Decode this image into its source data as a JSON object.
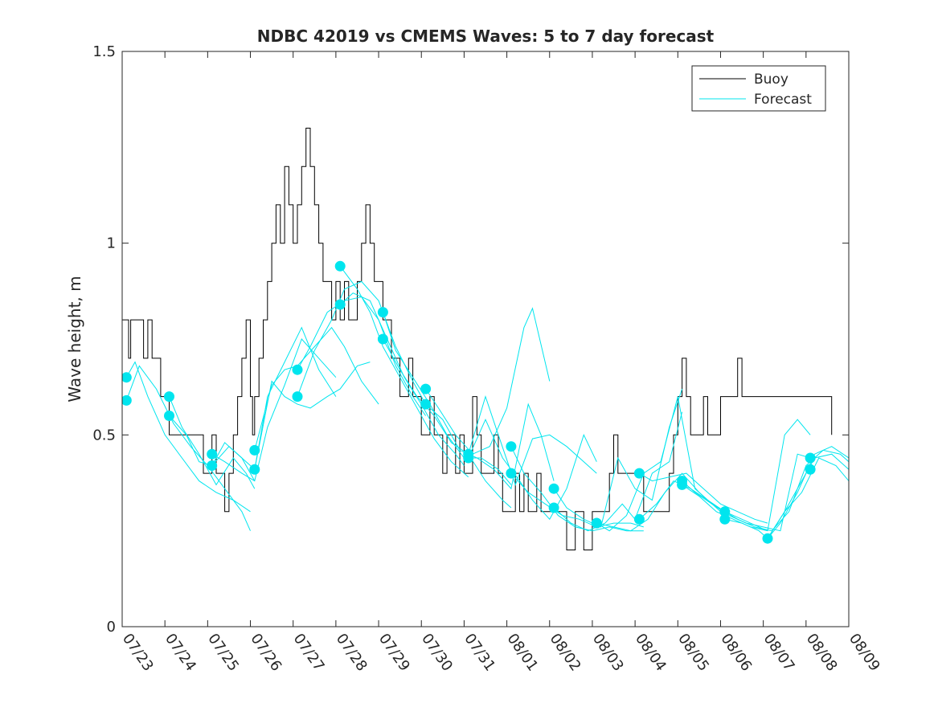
{
  "chart_data": {
    "type": "line",
    "title": "NDBC 42019 vs CMEMS Waves: 5 to 7 day forecast",
    "xlabel": "",
    "ylabel": "Wave height, m",
    "ylim": [
      0,
      1.5
    ],
    "xlim": [
      "07/23",
      "08/09"
    ],
    "yticks": [
      0,
      0.5,
      1,
      1.5
    ],
    "ytick_labels": [
      "0",
      "0.5",
      "1",
      "1.5"
    ],
    "xtick_labels": [
      "07/23",
      "07/24",
      "07/25",
      "07/26",
      "07/27",
      "07/28",
      "07/29",
      "07/30",
      "07/31",
      "08/01",
      "08/02",
      "08/03",
      "08/04",
      "08/05",
      "08/06",
      "08/07",
      "08/08",
      "08/09"
    ],
    "grid": false,
    "legend": {
      "position": "top-right",
      "entries": [
        "Buoy",
        "Forecast"
      ]
    },
    "colors": {
      "buoy": "#000000",
      "forecast": "#00e5ee",
      "marker": "#00e5ee"
    },
    "buoy": {
      "name": "Buoy",
      "x": [
        0,
        0.1,
        0.15,
        0.2,
        0.3,
        0.4,
        0.5,
        0.6,
        0.7,
        0.75,
        0.8,
        0.9,
        1.0,
        1.1,
        1.3,
        1.5,
        1.7,
        1.9,
        2.0,
        2.1,
        2.2,
        2.3,
        2.4,
        2.5,
        2.6,
        2.7,
        2.8,
        2.9,
        3.0,
        3.05,
        3.1,
        3.2,
        3.3,
        3.4,
        3.5,
        3.6,
        3.7,
        3.8,
        3.9,
        4.0,
        4.1,
        4.2,
        4.3,
        4.4,
        4.5,
        4.6,
        4.7,
        4.8,
        4.9,
        5.0,
        5.1,
        5.2,
        5.3,
        5.4,
        5.5,
        5.6,
        5.7,
        5.8,
        5.9,
        6.0,
        6.1,
        6.2,
        6.3,
        6.4,
        6.5,
        6.6,
        6.7,
        6.8,
        6.9,
        7.0,
        7.1,
        7.2,
        7.3,
        7.4,
        7.5,
        7.6,
        7.7,
        7.8,
        7.9,
        8.0,
        8.1,
        8.2,
        8.3,
        8.4,
        8.5,
        8.6,
        8.7,
        8.8,
        8.9,
        9.0,
        9.1,
        9.2,
        9.3,
        9.4,
        9.5,
        9.6,
        9.7,
        9.8,
        9.9,
        10.0,
        10.2,
        10.4,
        10.6,
        10.8,
        11.0,
        11.1,
        11.2,
        11.3,
        11.4,
        11.5,
        11.6,
        11.8,
        12.0,
        12.2,
        12.4,
        12.6,
        12.7,
        12.8,
        12.9,
        13.0,
        13.1,
        13.2,
        13.3,
        13.4,
        13.5,
        13.6,
        13.7,
        13.8,
        13.9,
        14.0,
        14.1,
        14.2,
        14.3,
        14.4,
        14.5,
        14.6,
        14.8,
        15.0,
        15.2,
        15.4,
        15.6,
        15.8,
        16.0,
        16.2,
        16.4,
        16.6
      ],
      "y": [
        0.8,
        0.8,
        0.7,
        0.8,
        0.8,
        0.8,
        0.7,
        0.8,
        0.7,
        0.7,
        0.7,
        0.6,
        0.6,
        0.5,
        0.5,
        0.5,
        0.5,
        0.4,
        0.4,
        0.5,
        0.4,
        0.4,
        0.3,
        0.4,
        0.5,
        0.6,
        0.7,
        0.8,
        0.6,
        0.5,
        0.6,
        0.7,
        0.8,
        0.9,
        1.0,
        1.1,
        1.0,
        1.2,
        1.1,
        1.0,
        1.1,
        1.2,
        1.3,
        1.2,
        1.1,
        1.0,
        0.9,
        0.9,
        0.8,
        0.9,
        0.8,
        0.9,
        0.8,
        0.8,
        0.9,
        1.0,
        1.1,
        1.0,
        0.9,
        0.9,
        0.8,
        0.8,
        0.7,
        0.7,
        0.6,
        0.6,
        0.7,
        0.6,
        0.6,
        0.5,
        0.5,
        0.6,
        0.5,
        0.5,
        0.4,
        0.5,
        0.5,
        0.4,
        0.5,
        0.4,
        0.4,
        0.6,
        0.5,
        0.4,
        0.4,
        0.4,
        0.5,
        0.4,
        0.3,
        0.3,
        0.3,
        0.4,
        0.3,
        0.4,
        0.3,
        0.3,
        0.4,
        0.3,
        0.3,
        0.3,
        0.3,
        0.2,
        0.3,
        0.2,
        0.3,
        0.3,
        0.3,
        0.3,
        0.4,
        0.5,
        0.4,
        0.4,
        0.4,
        0.3,
        0.3,
        0.3,
        0.3,
        0.4,
        0.5,
        0.6,
        0.7,
        0.6,
        0.5,
        0.5,
        0.5,
        0.6,
        0.5,
        0.5,
        0.5,
        0.6,
        0.6,
        0.6,
        0.6,
        0.7,
        0.6,
        0.6,
        0.6,
        0.6,
        0.6,
        0.6,
        0.6,
        0.6,
        0.6,
        0.6,
        0.6,
        0.5
      ]
    },
    "forecast": {
      "name": "Forecast",
      "series": [
        {
          "x": [
            0.1,
            0.4,
            0.8,
            1.2,
            1.6,
            2.0,
            2.4,
            2.8,
            3.0
          ],
          "y": [
            0.59,
            0.68,
            0.62,
            0.53,
            0.47,
            0.42,
            0.36,
            0.3,
            0.25
          ]
        },
        {
          "x": [
            0.1,
            0.3,
            0.6,
            1.0,
            1.4,
            1.8,
            2.2,
            2.6,
            3.0
          ],
          "y": [
            0.65,
            0.69,
            0.6,
            0.5,
            0.44,
            0.38,
            0.35,
            0.33,
            0.3
          ]
        },
        {
          "x": [
            1.1,
            1.4,
            1.8,
            2.2,
            2.6,
            2.9,
            3.1
          ],
          "y": [
            0.6,
            0.52,
            0.45,
            0.37,
            0.44,
            0.4,
            0.36
          ]
        },
        {
          "x": [
            1.1,
            1.5,
            1.8,
            2.1,
            2.4,
            2.8,
            3.1
          ],
          "y": [
            0.55,
            0.5,
            0.43,
            0.42,
            0.48,
            0.44,
            0.38
          ]
        },
        {
          "x": [
            2.1,
            2.4,
            2.8,
            3.1,
            3.4,
            3.8,
            4.2,
            4.6,
            5.0
          ],
          "y": [
            0.45,
            0.43,
            0.4,
            0.38,
            0.52,
            0.63,
            0.75,
            0.7,
            0.65
          ]
        },
        {
          "x": [
            2.1,
            2.5,
            2.8,
            3.1,
            3.4,
            3.8,
            4.2,
            4.6,
            5.0
          ],
          "y": [
            0.42,
            0.47,
            0.44,
            0.41,
            0.6,
            0.69,
            0.78,
            0.67,
            0.6
          ]
        },
        {
          "x": [
            3.1,
            3.5,
            3.8,
            4.1,
            4.5,
            4.9,
            5.2,
            5.6,
            6.0
          ],
          "y": [
            0.46,
            0.63,
            0.67,
            0.68,
            0.73,
            0.78,
            0.73,
            0.64,
            0.58
          ]
        },
        {
          "x": [
            3.1,
            3.5,
            3.8,
            4.1,
            4.4,
            4.8,
            5.1,
            5.5,
            5.8
          ],
          "y": [
            0.41,
            0.64,
            0.6,
            0.58,
            0.57,
            0.6,
            0.62,
            0.68,
            0.69
          ]
        },
        {
          "x": [
            4.1,
            4.5,
            4.9,
            5.2,
            5.6,
            6.0,
            6.4,
            6.8,
            7.1
          ],
          "y": [
            0.6,
            0.72,
            0.8,
            0.88,
            0.9,
            0.85,
            0.73,
            0.64,
            0.58
          ]
        },
        {
          "x": [
            4.1,
            4.4,
            4.8,
            5.2,
            5.6,
            6.0,
            6.4,
            6.8,
            7.1
          ],
          "y": [
            0.67,
            0.73,
            0.82,
            0.85,
            0.86,
            0.8,
            0.68,
            0.6,
            0.55
          ]
        },
        {
          "x": [
            5.1,
            5.4,
            5.8,
            6.2,
            6.6,
            7.0,
            7.4,
            7.8,
            8.0
          ],
          "y": [
            0.84,
            0.87,
            0.85,
            0.75,
            0.65,
            0.58,
            0.5,
            0.45,
            0.42
          ]
        },
        {
          "x": [
            5.1,
            5.5,
            5.8,
            6.1,
            6.5,
            6.9,
            7.3,
            7.7,
            8.1
          ],
          "y": [
            0.94,
            0.88,
            0.82,
            0.73,
            0.65,
            0.57,
            0.49,
            0.43,
            0.39
          ]
        },
        {
          "x": [
            6.1,
            6.4,
            6.8,
            7.2,
            7.6,
            8.0,
            8.4,
            8.8,
            9.1
          ],
          "y": [
            0.82,
            0.72,
            0.65,
            0.58,
            0.5,
            0.44,
            0.44,
            0.41,
            0.37
          ]
        },
        {
          "x": [
            6.1,
            6.5,
            6.9,
            7.3,
            7.7,
            8.1,
            8.5,
            8.9,
            9.1
          ],
          "y": [
            0.75,
            0.67,
            0.6,
            0.55,
            0.48,
            0.45,
            0.38,
            0.33,
            0.31
          ]
        },
        {
          "x": [
            7.1,
            7.4,
            7.8,
            8.2,
            8.6,
            9.0,
            9.4,
            9.6,
            10.0
          ],
          "y": [
            0.62,
            0.57,
            0.5,
            0.45,
            0.47,
            0.57,
            0.78,
            0.83,
            0.64
          ]
        },
        {
          "x": [
            7.1,
            7.5,
            7.9,
            8.3,
            8.7,
            9.1,
            9.5,
            9.8,
            10.1
          ],
          "y": [
            0.58,
            0.54,
            0.46,
            0.44,
            0.41,
            0.36,
            0.58,
            0.5,
            0.38
          ]
        },
        {
          "x": [
            8.1,
            8.5,
            8.8,
            9.2,
            9.6,
            10.0,
            10.4,
            10.8,
            11.1
          ],
          "y": [
            0.45,
            0.6,
            0.5,
            0.37,
            0.49,
            0.5,
            0.47,
            0.43,
            0.4
          ]
        },
        {
          "x": [
            8.1,
            8.5,
            8.9,
            9.3,
            9.6,
            10.0,
            10.4,
            10.8,
            11.1
          ],
          "y": [
            0.44,
            0.54,
            0.44,
            0.38,
            0.33,
            0.28,
            0.36,
            0.5,
            0.43
          ]
        },
        {
          "x": [
            9.1,
            9.4,
            9.8,
            10.2,
            10.6,
            11.0,
            11.4,
            11.8,
            12.2
          ],
          "y": [
            0.47,
            0.4,
            0.35,
            0.29,
            0.26,
            0.25,
            0.26,
            0.25,
            0.25
          ]
        },
        {
          "x": [
            9.1,
            9.5,
            9.9,
            10.3,
            10.7,
            11.1,
            11.5,
            11.9,
            12.2
          ],
          "y": [
            0.4,
            0.35,
            0.32,
            0.29,
            0.28,
            0.26,
            0.27,
            0.27,
            0.26
          ]
        },
        {
          "x": [
            10.1,
            10.4,
            10.8,
            11.2,
            11.6,
            12.0,
            12.4,
            12.8,
            13.1
          ],
          "y": [
            0.36,
            0.31,
            0.28,
            0.26,
            0.44,
            0.36,
            0.33,
            0.52,
            0.62
          ]
        },
        {
          "x": [
            10.1,
            10.5,
            10.9,
            11.3,
            11.7,
            12.0,
            12.4,
            12.8,
            13.1
          ],
          "y": [
            0.31,
            0.27,
            0.25,
            0.27,
            0.32,
            0.28,
            0.4,
            0.43,
            0.56
          ]
        },
        {
          "x": [
            11.1,
            11.4,
            11.8,
            12.2,
            12.6,
            13.0,
            13.4,
            13.8,
            14.1
          ],
          "y": [
            0.27,
            0.25,
            0.29,
            0.4,
            0.43,
            0.6,
            0.36,
            0.32,
            0.3
          ]
        },
        {
          "x": [
            11.1,
            11.5,
            11.9,
            12.3,
            12.7,
            13.1,
            13.5,
            13.9,
            14.1
          ],
          "y": [
            0.27,
            0.26,
            0.25,
            0.28,
            0.35,
            0.4,
            0.35,
            0.31,
            0.29
          ]
        },
        {
          "x": [
            12.1,
            12.4,
            12.8,
            13.2,
            13.6,
            14.0,
            14.4,
            14.8,
            15.1
          ],
          "y": [
            0.4,
            0.38,
            0.39,
            0.4,
            0.36,
            0.32,
            0.3,
            0.28,
            0.27
          ]
        },
        {
          "x": [
            12.1,
            12.5,
            12.9,
            13.3,
            13.7,
            14.1,
            14.5,
            14.9,
            15.1
          ],
          "y": [
            0.28,
            0.32,
            0.38,
            0.36,
            0.33,
            0.3,
            0.28,
            0.26,
            0.25
          ]
        },
        {
          "x": [
            13.1,
            13.4,
            13.8,
            14.2,
            14.6,
            15.0,
            15.4,
            15.8,
            16.1
          ],
          "y": [
            0.38,
            0.35,
            0.32,
            0.29,
            0.27,
            0.26,
            0.25,
            0.45,
            0.44
          ]
        },
        {
          "x": [
            13.1,
            13.5,
            13.9,
            14.3,
            14.7,
            15.1,
            15.5,
            15.8,
            16.1
          ],
          "y": [
            0.37,
            0.34,
            0.3,
            0.28,
            0.26,
            0.25,
            0.5,
            0.54,
            0.5
          ]
        },
        {
          "x": [
            14.1,
            14.4,
            14.8,
            15.2,
            15.6,
            16.0,
            16.4,
            16.8,
            17.0
          ],
          "y": [
            0.3,
            0.28,
            0.26,
            0.25,
            0.3,
            0.42,
            0.46,
            0.45,
            0.43
          ]
        },
        {
          "x": [
            14.1,
            14.5,
            14.9,
            15.1,
            15.5,
            15.9,
            16.3,
            16.7,
            17.0
          ],
          "y": [
            0.28,
            0.27,
            0.25,
            0.23,
            0.3,
            0.35,
            0.44,
            0.42,
            0.38
          ]
        },
        {
          "x": [
            15.1,
            15.4,
            15.8,
            16.2,
            16.6,
            17.0
          ],
          "y": [
            0.23,
            0.27,
            0.35,
            0.45,
            0.47,
            0.44
          ]
        },
        {
          "x": [
            15.1,
            15.5,
            15.9,
            16.2,
            16.6,
            17.0
          ],
          "y": [
            0.23,
            0.3,
            0.38,
            0.44,
            0.45,
            0.41
          ]
        }
      ],
      "markers": {
        "x": [
          0.1,
          0.1,
          1.1,
          1.1,
          2.1,
          2.1,
          3.1,
          3.1,
          4.1,
          4.1,
          5.1,
          5.1,
          6.1,
          6.1,
          7.1,
          7.1,
          8.1,
          8.1,
          9.1,
          9.1,
          10.1,
          10.1,
          11.1,
          11.1,
          12.1,
          12.1,
          13.1,
          13.1,
          14.1,
          14.1,
          15.1,
          16.1,
          16.1
        ],
        "y": [
          0.65,
          0.59,
          0.6,
          0.55,
          0.45,
          0.42,
          0.46,
          0.41,
          0.67,
          0.6,
          0.94,
          0.84,
          0.82,
          0.75,
          0.62,
          0.58,
          0.45,
          0.44,
          0.47,
          0.4,
          0.36,
          0.31,
          0.27,
          0.27,
          0.4,
          0.28,
          0.38,
          0.37,
          0.3,
          0.28,
          0.23,
          0.44,
          0.41
        ]
      }
    }
  }
}
